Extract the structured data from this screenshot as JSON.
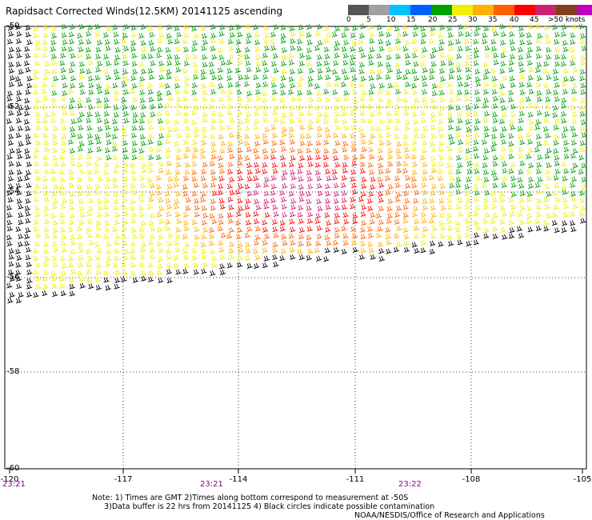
{
  "title": "Rapidsact Corrected Winds(12.5KM) 20141125 ascending",
  "legend": {
    "colors": [
      "#555555",
      "#a0a0a0",
      "#00c0ff",
      "#0060ff",
      "#00a000",
      "#f0f000",
      "#ffb000",
      "#ff6000",
      "#ff0000",
      "#d02070",
      "#804020",
      "#c000c0",
      "#400060"
    ],
    "labels": [
      "0",
      "5",
      "10",
      "15",
      "20",
      "25",
      "30",
      "35",
      "40",
      "45",
      ">50 knots"
    ]
  },
  "map": {
    "lat_labels": [
      "-50",
      "-52",
      "-54",
      "-56",
      "-58",
      "-60"
    ],
    "lon_labels": [
      "-120",
      "-117",
      "-114",
      "-111",
      "-108",
      "-105"
    ],
    "time_labels": [
      "23:21",
      "23:21",
      "23:22"
    ]
  },
  "notes": {
    "line1": "Note: 1) Times are GMT 2)Times along bottom correspond to measurement at -50S",
    "line2": "3)Data buffer is 22 hrs from 20141125 4) Black circles indicate possible contamination",
    "credit": "NOAA/NESDIS/Office of Research and Applications"
  }
}
